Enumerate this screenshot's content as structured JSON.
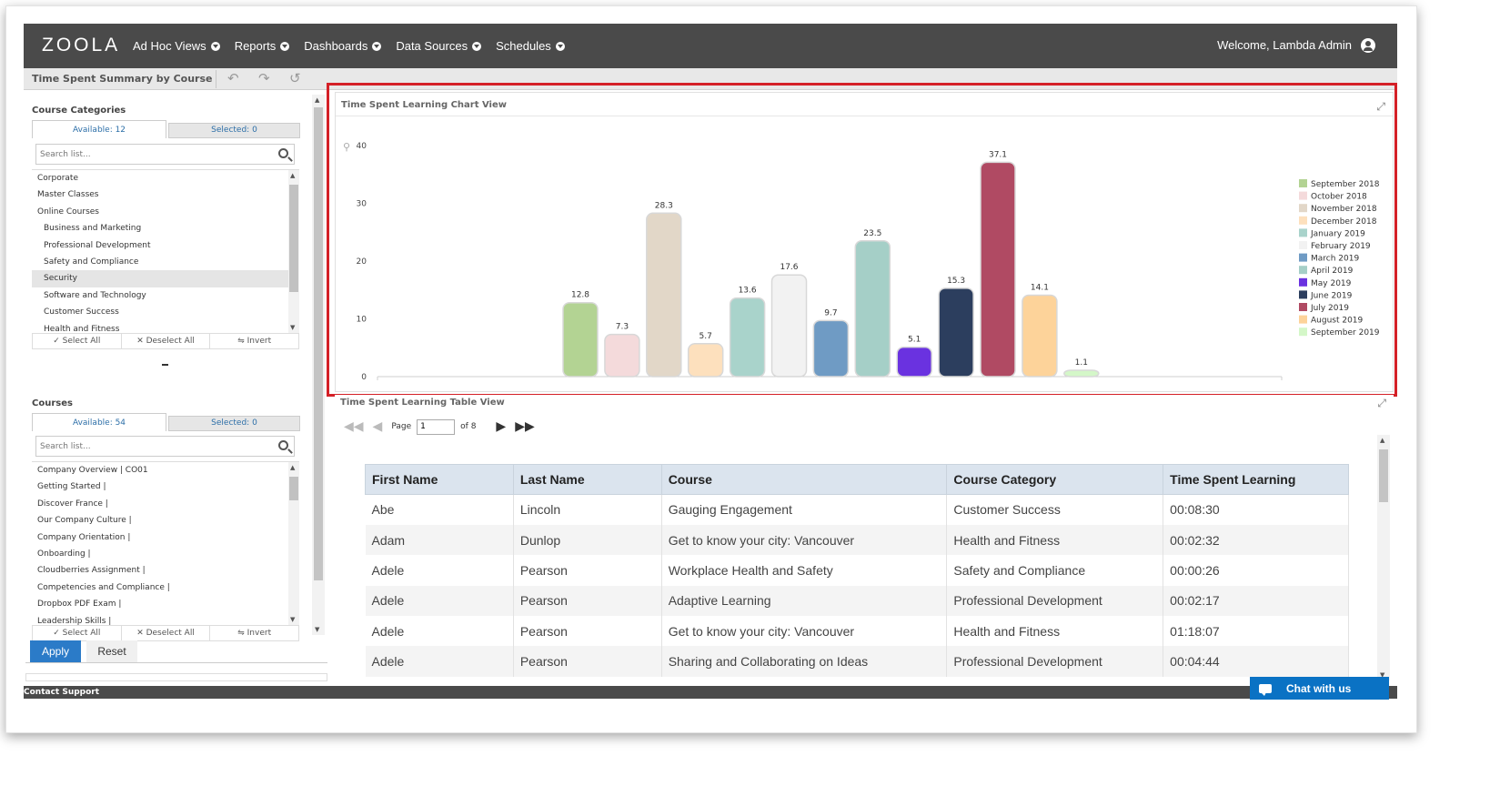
{
  "app": {
    "logo": "ZOOLA"
  },
  "nav": {
    "items": [
      {
        "label": "Ad Hoc Views"
      },
      {
        "label": "Reports"
      },
      {
        "label": "Dashboards"
      },
      {
        "label": "Data Sources"
      },
      {
        "label": "Schedules"
      }
    ],
    "welcome": "Welcome, Lambda Admin"
  },
  "toolbar": {
    "title": "Time Spent Summary by Course"
  },
  "filters": {
    "categories": {
      "title": "Course Categories",
      "available": "Available: 12",
      "selected": "Selected: 0",
      "search_placeholder": "Search list...",
      "items": [
        {
          "label": "Corporate",
          "indent": false,
          "selected": false
        },
        {
          "label": "Master Classes",
          "indent": false,
          "selected": false
        },
        {
          "label": "Online Courses",
          "indent": false,
          "selected": false
        },
        {
          "label": "Business and Marketing",
          "indent": true,
          "selected": false
        },
        {
          "label": "Professional Development",
          "indent": true,
          "selected": false
        },
        {
          "label": "Safety and Compliance",
          "indent": true,
          "selected": false
        },
        {
          "label": "Security",
          "indent": true,
          "selected": true
        },
        {
          "label": "Software and Technology",
          "indent": true,
          "selected": false
        },
        {
          "label": "Customer Success",
          "indent": true,
          "selected": false
        },
        {
          "label": "Health and Fitness",
          "indent": true,
          "selected": false
        }
      ]
    },
    "courses": {
      "title": "Courses",
      "available": "Available: 54",
      "selected": "Selected: 0",
      "search_placeholder": "Search list...",
      "items": [
        {
          "label": "Company Overview | CO01"
        },
        {
          "label": "Getting Started |"
        },
        {
          "label": "Discover France |"
        },
        {
          "label": "Our Company Culture |"
        },
        {
          "label": "Company Orientation |"
        },
        {
          "label": "Onboarding |"
        },
        {
          "label": "Cloudberries Assignment |"
        },
        {
          "label": "Competencies and Compliance |"
        },
        {
          "label": "Dropbox PDF Exam |"
        },
        {
          "label": "Leadership Skills |"
        }
      ]
    },
    "actions": {
      "select_all": "Select All",
      "deselect_all": "Deselect All",
      "invert": "Invert"
    },
    "apply": "Apply",
    "reset": "Reset"
  },
  "chart_panel": {
    "title": "Time Spent Learning Chart View"
  },
  "chart_data": {
    "type": "bar",
    "title": "",
    "xlabel": "",
    "ylabel": "",
    "ylim": [
      0,
      40
    ],
    "yticks": [
      0,
      10,
      20,
      30,
      40
    ],
    "grid": false,
    "legend": "right",
    "categories": [
      "September 2018",
      "October 2018",
      "November 2018",
      "December 2018",
      "January 2019",
      "February 2019",
      "March 2019",
      "April 2019",
      "May 2019",
      "June 2019",
      "July 2019",
      "August 2019",
      "September 2019"
    ],
    "values": [
      12.8,
      7.3,
      28.3,
      5.7,
      13.6,
      17.6,
      9.7,
      23.5,
      5.1,
      15.3,
      37.1,
      14.1,
      1.1
    ],
    "value_labels": [
      "12.8",
      "7.3",
      "28.3",
      "5.7",
      "13.6",
      "17.6",
      "9.7",
      "23.5",
      "5.1",
      "15.3",
      "37.1",
      "14.1",
      "1.1"
    ],
    "colors": [
      "#b3d393",
      "#f4dadb",
      "#e2d7c8",
      "#fde0bd",
      "#a9d3cb",
      "#f2f2f2",
      "#6f9bc4",
      "#a5cfc7",
      "#6a32e0",
      "#2c3e5e",
      "#b04a63",
      "#fdd39a",
      "#d4f7c8"
    ]
  },
  "table_panel": {
    "title": "Time Spent Learning Table View",
    "pager": {
      "page_label": "Page",
      "page_value": "1",
      "of_label": "of",
      "total": "8"
    },
    "columns": [
      "First Name",
      "Last Name",
      "Course",
      "Course Category",
      "Time Spent Learning"
    ],
    "rows": [
      [
        "Abe",
        "Lincoln",
        "Gauging Engagement",
        "Customer Success",
        "00:08:30"
      ],
      [
        "Adam",
        "Dunlop",
        "Get to know your city: Vancouver",
        "Health and Fitness",
        "00:02:32"
      ],
      [
        "Adele",
        "Pearson",
        "Workplace Health and Safety",
        "Safety and Compliance",
        "00:00:26"
      ],
      [
        "Adele",
        "Pearson",
        "Adaptive Learning",
        "Professional Development",
        "00:02:17"
      ],
      [
        "Adele",
        "Pearson",
        "Get to know your city: Vancouver",
        "Health and Fitness",
        "01:18:07"
      ],
      [
        "Adele",
        "Pearson",
        "Sharing and Collaborating on Ideas",
        "Professional Development",
        "00:04:44"
      ]
    ]
  },
  "footer": {
    "contact": "Contact Support",
    "chat": "Chat with us"
  }
}
